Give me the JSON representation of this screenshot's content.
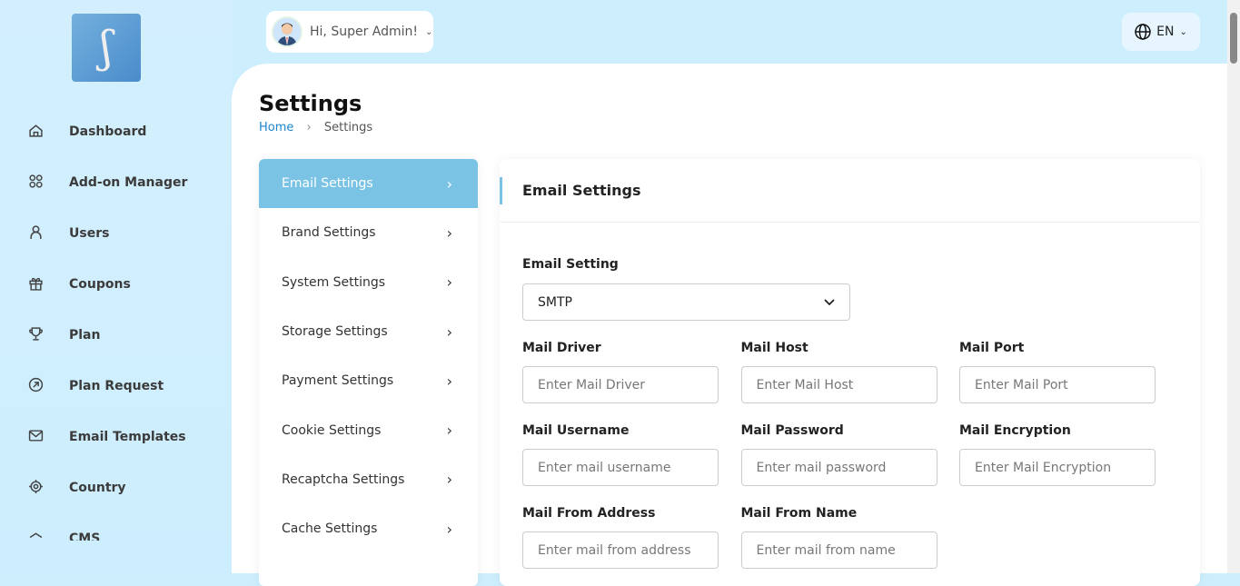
{
  "header": {
    "greeting": "Hi, Super Admin!",
    "language": "EN"
  },
  "sidebar": {
    "logo_text": "أ",
    "items": [
      {
        "label": "Dashboard",
        "icon": "home"
      },
      {
        "label": "Add-on Manager",
        "icon": "grid"
      },
      {
        "label": "Users",
        "icon": "user"
      },
      {
        "label": "Coupons",
        "icon": "gift"
      },
      {
        "label": "Plan",
        "icon": "trophy"
      },
      {
        "label": "Plan Request",
        "icon": "arrow-circle"
      },
      {
        "label": "Email Templates",
        "icon": "mail"
      },
      {
        "label": "Country",
        "icon": "location"
      },
      {
        "label": "CMS",
        "icon": "layers"
      }
    ]
  },
  "page": {
    "title": "Settings",
    "breadcrumb": [
      "Home",
      "Settings"
    ]
  },
  "settings_nav": [
    "Email Settings",
    "Brand Settings",
    "System Settings",
    "Storage Settings",
    "Payment Settings",
    "Cookie Settings",
    "Recaptcha Settings",
    "Cache Settings"
  ],
  "form": {
    "title": "Email Settings",
    "email_setting_label": "Email Setting",
    "email_setting_value": "SMTP",
    "fields": [
      {
        "label": "Mail Driver",
        "placeholder": "Enter Mail Driver"
      },
      {
        "label": "Mail Host",
        "placeholder": "Enter Mail Host"
      },
      {
        "label": "Mail Port",
        "placeholder": "Enter Mail Port"
      },
      {
        "label": "Mail Username",
        "placeholder": "Enter mail username"
      },
      {
        "label": "Mail Password",
        "placeholder": "Enter mail password"
      },
      {
        "label": "Mail Encryption",
        "placeholder": "Enter Mail Encryption"
      },
      {
        "label": "Mail From Address",
        "placeholder": "Enter mail from address"
      },
      {
        "label": "Mail From Name",
        "placeholder": "Enter mail from name"
      }
    ]
  }
}
